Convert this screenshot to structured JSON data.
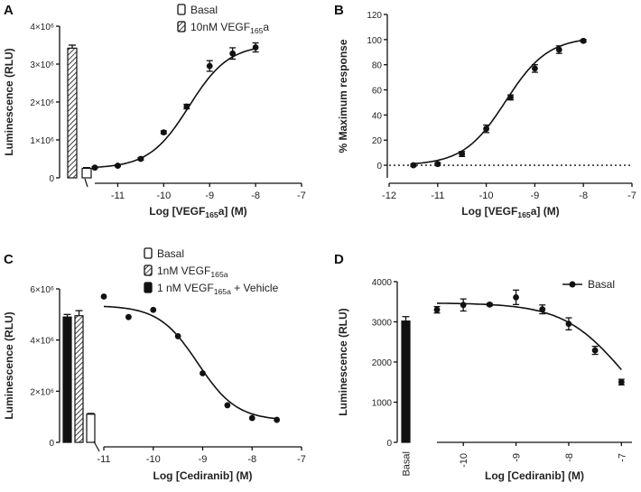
{
  "figure": {
    "panels": [
      "A",
      "B",
      "C",
      "D"
    ]
  },
  "chart_data": [
    {
      "panel": "A",
      "type": "scatter",
      "ylabel": "Luminescence (RLU)",
      "xlabel": "Log [VEGF165a] (M)",
      "xlabel_parts": {
        "pre": "Log [VEGF",
        "sub": "165",
        "post": "a] (M)"
      },
      "xlim": [
        -11.5,
        -7
      ],
      "ylim": [
        0,
        4000000
      ],
      "xticks": [
        -11,
        -10,
        -9,
        -8,
        -7
      ],
      "yticks": [
        0,
        1000000,
        2000000,
        3000000,
        4000000
      ],
      "ytick_labels": [
        "0",
        "1×10⁶",
        "2×10⁶",
        "3×10⁶",
        "4×10⁶"
      ],
      "legend": [
        {
          "label": "Basal",
          "pattern": "white"
        },
        {
          "label_pre": "10nM VEGF",
          "label_sub": "165",
          "label_post": "a",
          "label": "10nM VEGF165a",
          "pattern": "hatch"
        }
      ],
      "bars": [
        {
          "name": "10nM VEGF165a",
          "value": 3420000,
          "error": 80000,
          "pattern": "hatch"
        },
        {
          "name": "Basal",
          "value": 250000,
          "error": 20000,
          "pattern": "white"
        }
      ],
      "series": [
        {
          "name": "VEGF165a",
          "x": [
            -11.5,
            -11,
            -10.5,
            -10,
            -9.5,
            -9,
            -8.5,
            -8
          ],
          "y": [
            270000,
            320000,
            500000,
            1200000,
            1880000,
            2950000,
            3280000,
            3440000
          ],
          "err": [
            20000,
            20000,
            30000,
            40000,
            60000,
            140000,
            150000,
            120000
          ]
        }
      ],
      "fit": {
        "bottom": 250000,
        "top": 3520000,
        "logEC50": -9.45,
        "hill": 1.0
      }
    },
    {
      "panel": "B",
      "type": "scatter",
      "ylabel": "% Maximum response",
      "xlabel": "Log [VEGF165a] (M)",
      "xlabel_parts": {
        "pre": "Log [VEGF",
        "sub": "165",
        "post": "a] (M)"
      },
      "xlim": [
        -12,
        -7
      ],
      "ylim": [
        -10,
        120
      ],
      "xticks": [
        -12,
        -11,
        -10,
        -9,
        -8,
        -7
      ],
      "yticks": [
        0,
        20,
        40,
        60,
        80,
        100,
        120
      ],
      "reference_line": 0,
      "series": [
        {
          "name": "VEGF165a",
          "x": [
            -11.5,
            -11,
            -10.5,
            -10,
            -9.5,
            -9,
            -8.5,
            -8
          ],
          "y": [
            0,
            1,
            9,
            29,
            54,
            77,
            92,
            99
          ],
          "err": [
            1,
            1,
            2,
            3,
            2,
            3,
            3,
            1
          ]
        }
      ],
      "fit": {
        "bottom": 0,
        "top": 102,
        "logEC50": -9.6,
        "hill": 1.0
      }
    },
    {
      "panel": "C",
      "type": "scatter",
      "ylabel": "Luminescence (RLU)",
      "xlabel": "Log [Cediranib] (M)",
      "xlim": [
        -11,
        -7
      ],
      "ylim": [
        0,
        6000000
      ],
      "xticks": [
        -11,
        -10,
        -9,
        -8,
        -7
      ],
      "yticks": [
        0,
        2000000,
        4000000,
        6000000
      ],
      "ytick_labels": [
        "0",
        "2×10⁶",
        "4×10⁶",
        "6×10⁶"
      ],
      "legend": [
        {
          "label": "Basal",
          "pattern": "white"
        },
        {
          "label_pre": "1nM VEGF",
          "label_sub": "165a",
          "label_post": "",
          "label": "1nM VEGF165a",
          "pattern": "hatch"
        },
        {
          "label_pre": "1 nM VEGF",
          "label_sub": "165a",
          "label_post": " + Vehicle",
          "label": "1 nM VEGF165a + Vehicle",
          "pattern": "black"
        }
      ],
      "bars": [
        {
          "name": "1 nM VEGF165a + Vehicle",
          "value": 4900000,
          "error": 100000,
          "pattern": "black"
        },
        {
          "name": "1nM VEGF165a",
          "value": 4950000,
          "error": 200000,
          "pattern": "hatch"
        },
        {
          "name": "Basal",
          "value": 1100000,
          "error": 30000,
          "pattern": "white"
        }
      ],
      "series": [
        {
          "name": "Cediranib",
          "x": [
            -11,
            -10.5,
            -10,
            -9.5,
            -9,
            -8.5,
            -8,
            -7.5
          ],
          "y": [
            5700000,
            4900000,
            5180000,
            4150000,
            2700000,
            1450000,
            950000,
            880000
          ],
          "err": [
            0,
            0,
            0,
            0,
            0,
            0,
            0,
            0
          ]
        }
      ],
      "fit": {
        "bottom": 850000,
        "top": 5350000,
        "logEC50": -9.1,
        "hill": -1.1
      }
    },
    {
      "panel": "D",
      "type": "scatter",
      "ylabel": "Luminescence (RLU)",
      "xlabel": "Log [Cediranib] (M)",
      "xlim": [
        -10.5,
        -6.8
      ],
      "ylim": [
        0,
        4000
      ],
      "xticks": [
        -10,
        -9,
        -8,
        -7
      ],
      "yticks": [
        0,
        1000,
        2000,
        3000,
        4000
      ],
      "bar_category": "Basal",
      "legend": [
        {
          "label": "Basal",
          "marker": "filled-circle"
        }
      ],
      "bars": [
        {
          "name": "Basal",
          "value": 3020,
          "error": 110,
          "pattern": "black"
        }
      ],
      "series": [
        {
          "name": "Basal",
          "x": [
            -10.5,
            -10,
            -9.5,
            -9,
            -8.5,
            -8,
            -7.5,
            -7
          ],
          "y": [
            3300,
            3420,
            3430,
            3610,
            3310,
            2950,
            2290,
            1500
          ],
          "err": [
            80,
            150,
            30,
            180,
            110,
            150,
            100,
            70
          ]
        }
      ],
      "fit": {
        "bottom": 0,
        "top": 3470,
        "logEC50": -6.95,
        "hill": -0.75
      }
    }
  ]
}
